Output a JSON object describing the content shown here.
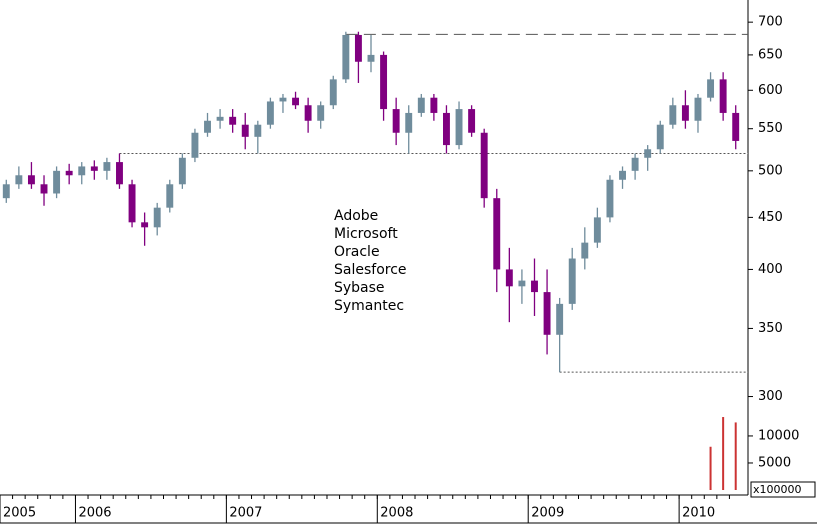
{
  "chart_data": {
    "type": "candlestick",
    "categories": [
      "2005",
      null,
      null,
      null,
      null,
      null,
      "2006",
      null,
      null,
      null,
      null,
      null,
      null,
      null,
      null,
      null,
      null,
      null,
      "2007",
      null,
      null,
      null,
      null,
      null,
      null,
      null,
      null,
      null,
      null,
      null,
      "2008",
      null,
      null,
      null,
      null,
      null,
      null,
      null,
      null,
      null,
      null,
      null,
      "2009",
      null,
      null,
      null,
      null,
      null,
      null,
      null,
      null,
      null,
      null,
      null,
      "2010",
      null,
      null,
      null,
      null
    ],
    "open": [
      470,
      485,
      495,
      485,
      475,
      500,
      495,
      505,
      500,
      510,
      485,
      445,
      440,
      460,
      485,
      515,
      545,
      560,
      565,
      555,
      540,
      555,
      585,
      590,
      580,
      560,
      580,
      615,
      680,
      640,
      650,
      575,
      545,
      570,
      590,
      570,
      530,
      575,
      545,
      470,
      400,
      385,
      390,
      380,
      345,
      370,
      410,
      425,
      450,
      490,
      500,
      515,
      525,
      555,
      580,
      560,
      590,
      615,
      570
    ],
    "high": [
      490,
      505,
      510,
      495,
      505,
      508,
      510,
      512,
      515,
      520,
      490,
      455,
      465,
      490,
      520,
      550,
      570,
      575,
      575,
      570,
      560,
      590,
      595,
      598,
      590,
      585,
      620,
      685,
      685,
      680,
      655,
      590,
      580,
      595,
      595,
      580,
      585,
      580,
      550,
      480,
      420,
      400,
      410,
      400,
      375,
      420,
      440,
      460,
      495,
      505,
      520,
      530,
      560,
      590,
      600,
      595,
      625,
      625,
      580
    ],
    "low": [
      465,
      480,
      480,
      462,
      470,
      485,
      485,
      490,
      490,
      480,
      440,
      422,
      432,
      455,
      480,
      510,
      540,
      550,
      545,
      525,
      520,
      550,
      570,
      575,
      545,
      550,
      575,
      610,
      610,
      625,
      560,
      530,
      520,
      565,
      560,
      520,
      525,
      540,
      460,
      380,
      355,
      370,
      360,
      330,
      317,
      365,
      400,
      420,
      445,
      480,
      490,
      500,
      520,
      550,
      550,
      545,
      585,
      560,
      525
    ],
    "close": [
      485,
      495,
      485,
      475,
      500,
      495,
      505,
      500,
      510,
      485,
      445,
      440,
      460,
      485,
      515,
      545,
      560,
      565,
      555,
      540,
      555,
      585,
      590,
      580,
      560,
      580,
      615,
      680,
      640,
      650,
      575,
      545,
      570,
      590,
      570,
      530,
      575,
      545,
      470,
      400,
      385,
      390,
      380,
      345,
      370,
      410,
      425,
      450,
      490,
      500,
      515,
      525,
      555,
      580,
      560,
      590,
      615,
      570,
      535
    ],
    "up_color": "#6f8c9c",
    "down_color": "#800080",
    "ylim": [
      291,
      736
    ],
    "yticks": [
      300,
      350,
      400,
      450,
      500,
      550,
      600,
      650,
      700
    ],
    "log_scale": true,
    "reference_lines": [
      {
        "value": 681,
        "style": "dashed",
        "side": "high"
      },
      {
        "value": 520,
        "style": "dotted",
        "side": "high"
      },
      {
        "value": 317,
        "style": "dotted",
        "side": "low"
      }
    ],
    "labels": [
      "Adobe",
      "Microsoft",
      "Oracle",
      "Salesforce",
      "Sybase",
      "Symantec"
    ],
    "volume": {
      "values": [
        null,
        null,
        null,
        null,
        null,
        null,
        null,
        null,
        null,
        null,
        null,
        null,
        null,
        null,
        null,
        null,
        null,
        null,
        null,
        null,
        null,
        null,
        null,
        null,
        null,
        null,
        null,
        null,
        null,
        null,
        null,
        null,
        null,
        null,
        null,
        null,
        null,
        null,
        null,
        null,
        null,
        null,
        null,
        null,
        null,
        null,
        null,
        null,
        null,
        null,
        null,
        null,
        null,
        null,
        null,
        null,
        8000,
        13500,
        12500
      ],
      "color": "#cc3333",
      "ylim": [
        0,
        14800
      ],
      "yticks": [
        5000,
        10000
      ],
      "unit_label": "x100000"
    }
  }
}
